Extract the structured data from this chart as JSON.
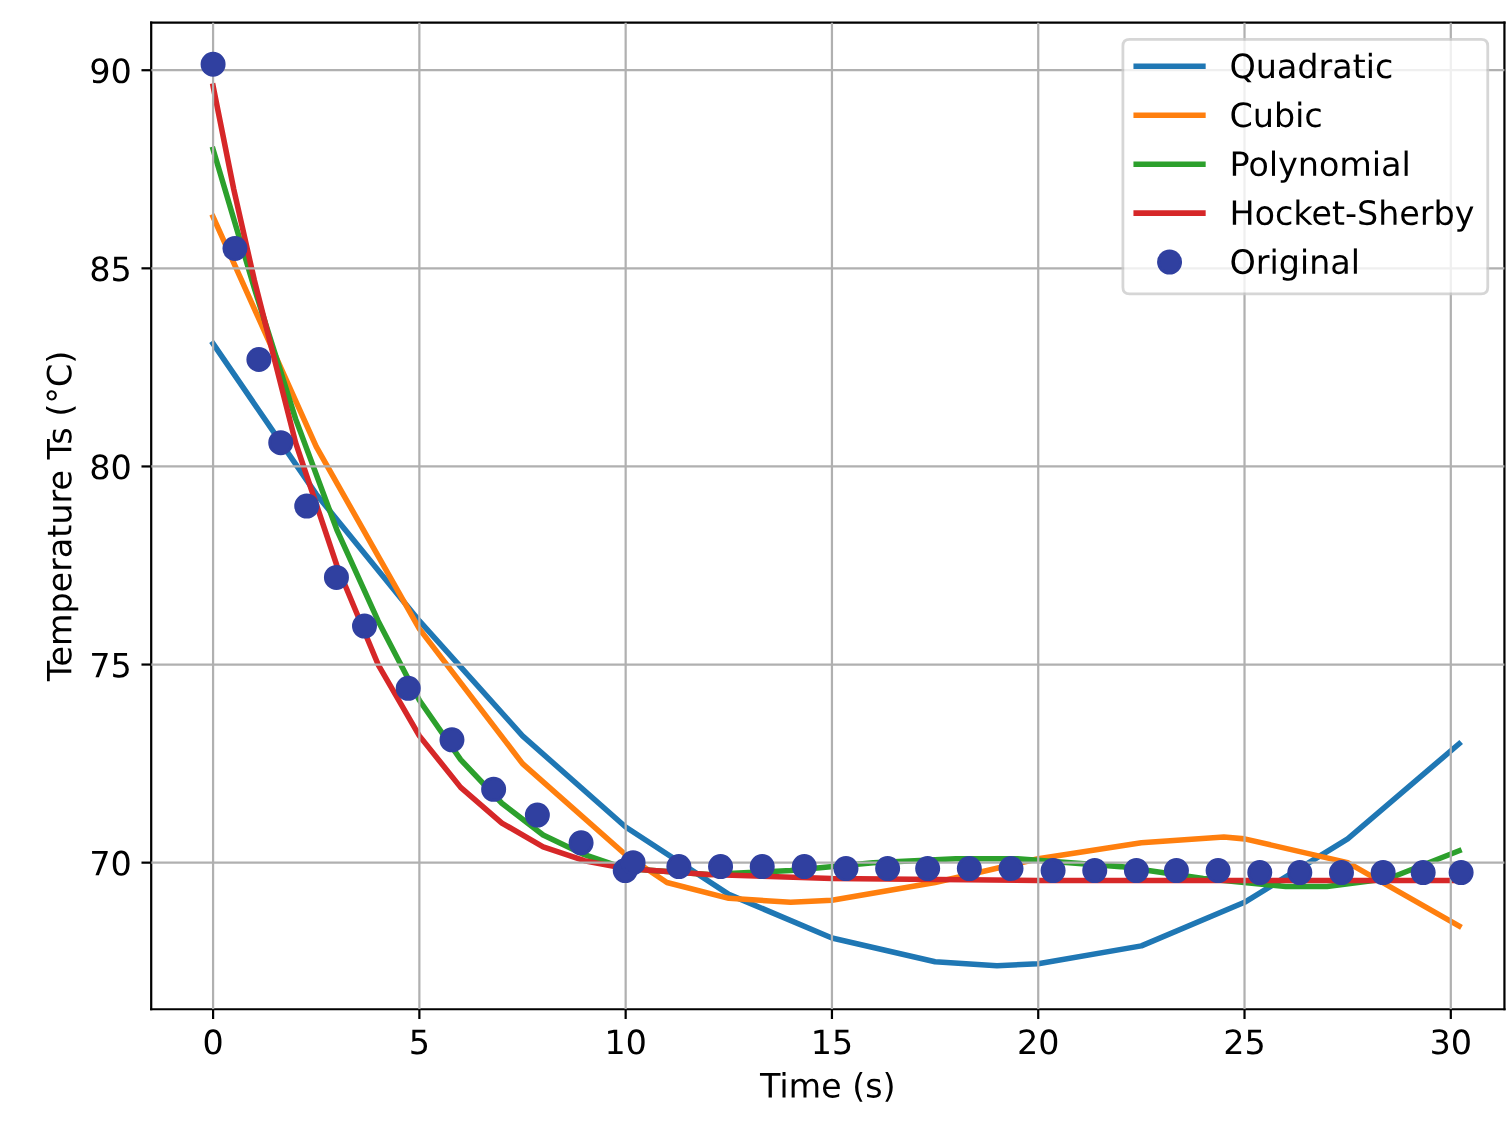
{
  "chart_data": {
    "type": "line",
    "xlabel": "Time (s)",
    "ylabel": "Temperature Ts (°C)",
    "xlim": [
      -1.5,
      31.3
    ],
    "ylim": [
      66.3,
      91.2
    ],
    "xticks": [
      0,
      5,
      10,
      15,
      20,
      25,
      30
    ],
    "yticks": [
      70,
      75,
      80,
      85,
      90
    ],
    "grid": true,
    "legend": "top right",
    "series": [
      {
        "name": "Quadratic",
        "color": "#1f77b4",
        "x": [
          0,
          2.5,
          5,
          7.5,
          10,
          12.5,
          15,
          17.5,
          19,
          20,
          22.5,
          25,
          27.5,
          30.2
        ],
        "values": [
          83.1,
          79.3,
          76.1,
          73.2,
          70.9,
          69.2,
          68.1,
          67.5,
          67.4,
          67.45,
          67.9,
          69.0,
          70.6,
          73.0
        ]
      },
      {
        "name": "Cubic",
        "color": "#ff7f0e",
        "x": [
          0,
          2.5,
          5,
          7.5,
          10,
          11,
          12.5,
          14,
          15,
          17.5,
          20,
          22.5,
          24.5,
          25,
          27.5,
          30.2
        ],
        "values": [
          86.3,
          80.5,
          75.9,
          72.5,
          70.2,
          69.5,
          69.1,
          69.0,
          69.05,
          69.5,
          70.1,
          70.5,
          70.65,
          70.6,
          70.0,
          68.4
        ]
      },
      {
        "name": "Polynomial",
        "color": "#2ca02c",
        "x": [
          0,
          1,
          2,
          3,
          4,
          5,
          6,
          7,
          8,
          9,
          10,
          12,
          14,
          16,
          18,
          19.5,
          22,
          24,
          26,
          27,
          28.5,
          30.2
        ],
        "values": [
          88.0,
          84.5,
          81.2,
          78.4,
          76.1,
          74.1,
          72.6,
          71.5,
          70.7,
          70.2,
          69.85,
          69.7,
          69.8,
          70.0,
          70.1,
          70.1,
          69.9,
          69.6,
          69.4,
          69.4,
          69.6,
          70.3
        ]
      },
      {
        "name": "Hocket-Sherby",
        "color": "#d62728",
        "x": [
          0,
          0.5,
          1,
          2,
          3,
          4,
          5,
          6,
          7,
          8,
          9,
          10,
          12,
          15,
          20,
          25,
          30.2
        ],
        "values": [
          89.6,
          87.0,
          84.7,
          80.6,
          77.5,
          75.0,
          73.2,
          71.9,
          71.0,
          70.4,
          70.05,
          69.85,
          69.7,
          69.6,
          69.55,
          69.55,
          69.55
        ]
      },
      {
        "name": "Original",
        "type": "scatter",
        "marker": "circle",
        "color": "#3040a0",
        "x": [
          0,
          0.53,
          1.11,
          1.64,
          2.27,
          2.99,
          3.67,
          4.73,
          5.79,
          6.8,
          7.86,
          8.92,
          9.99,
          10.18,
          11.29,
          12.3,
          13.31,
          14.33,
          15.34,
          16.35,
          17.32,
          18.33,
          19.34,
          20.36,
          21.37,
          22.38,
          23.35,
          24.36,
          25.37,
          26.34,
          27.35,
          28.36,
          29.33,
          30.25
        ],
        "values": [
          90.15,
          85.5,
          82.7,
          80.6,
          79.0,
          77.2,
          75.97,
          74.4,
          73.1,
          71.85,
          71.2,
          70.5,
          69.8,
          70.0,
          69.9,
          69.9,
          69.9,
          69.9,
          69.85,
          69.85,
          69.85,
          69.85,
          69.85,
          69.8,
          69.8,
          69.8,
          69.8,
          69.8,
          69.75,
          69.75,
          69.75,
          69.75,
          69.75,
          69.75
        ]
      }
    ]
  }
}
